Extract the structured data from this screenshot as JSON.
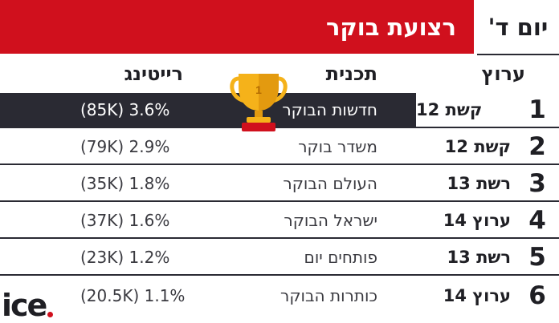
{
  "header": {
    "day_label": "יום ד'",
    "title": "רצועת בוקר"
  },
  "columns": {
    "channel": "ערוץ",
    "program": "תכנית",
    "rating": "רייטינג"
  },
  "trophy": {
    "label": "1",
    "color": "#f5b21a",
    "icon": "trophy-icon"
  },
  "rows": [
    {
      "rank": "1",
      "channel": "קשת 12",
      "program": "חדשות הבוקר",
      "rating": "(85K) 3.6%"
    },
    {
      "rank": "2",
      "channel": "קשת 12",
      "program": "משדר בוקר",
      "rating": "(79K) 2.9%"
    },
    {
      "rank": "3",
      "channel": "רשת 13",
      "program": "העולם הבוקר",
      "rating": "(35K) 1.8%"
    },
    {
      "rank": "4",
      "channel": "ערוץ 14",
      "program": "ישראל הבוקר",
      "rating": "(37K) 1.6%"
    },
    {
      "rank": "5",
      "channel": "רשת 13",
      "program": "פותחים יום",
      "rating": "(23K) 1.2%"
    },
    {
      "rank": "6",
      "channel": "ערוץ 14",
      "program": "כותרות הבוקר",
      "rating": "(20.5K) 1.1%"
    }
  ],
  "logo": {
    "text": "ice",
    "accent": "#d0101d"
  },
  "colors": {
    "accent": "#d0101d",
    "dark": "#2a2a33"
  }
}
